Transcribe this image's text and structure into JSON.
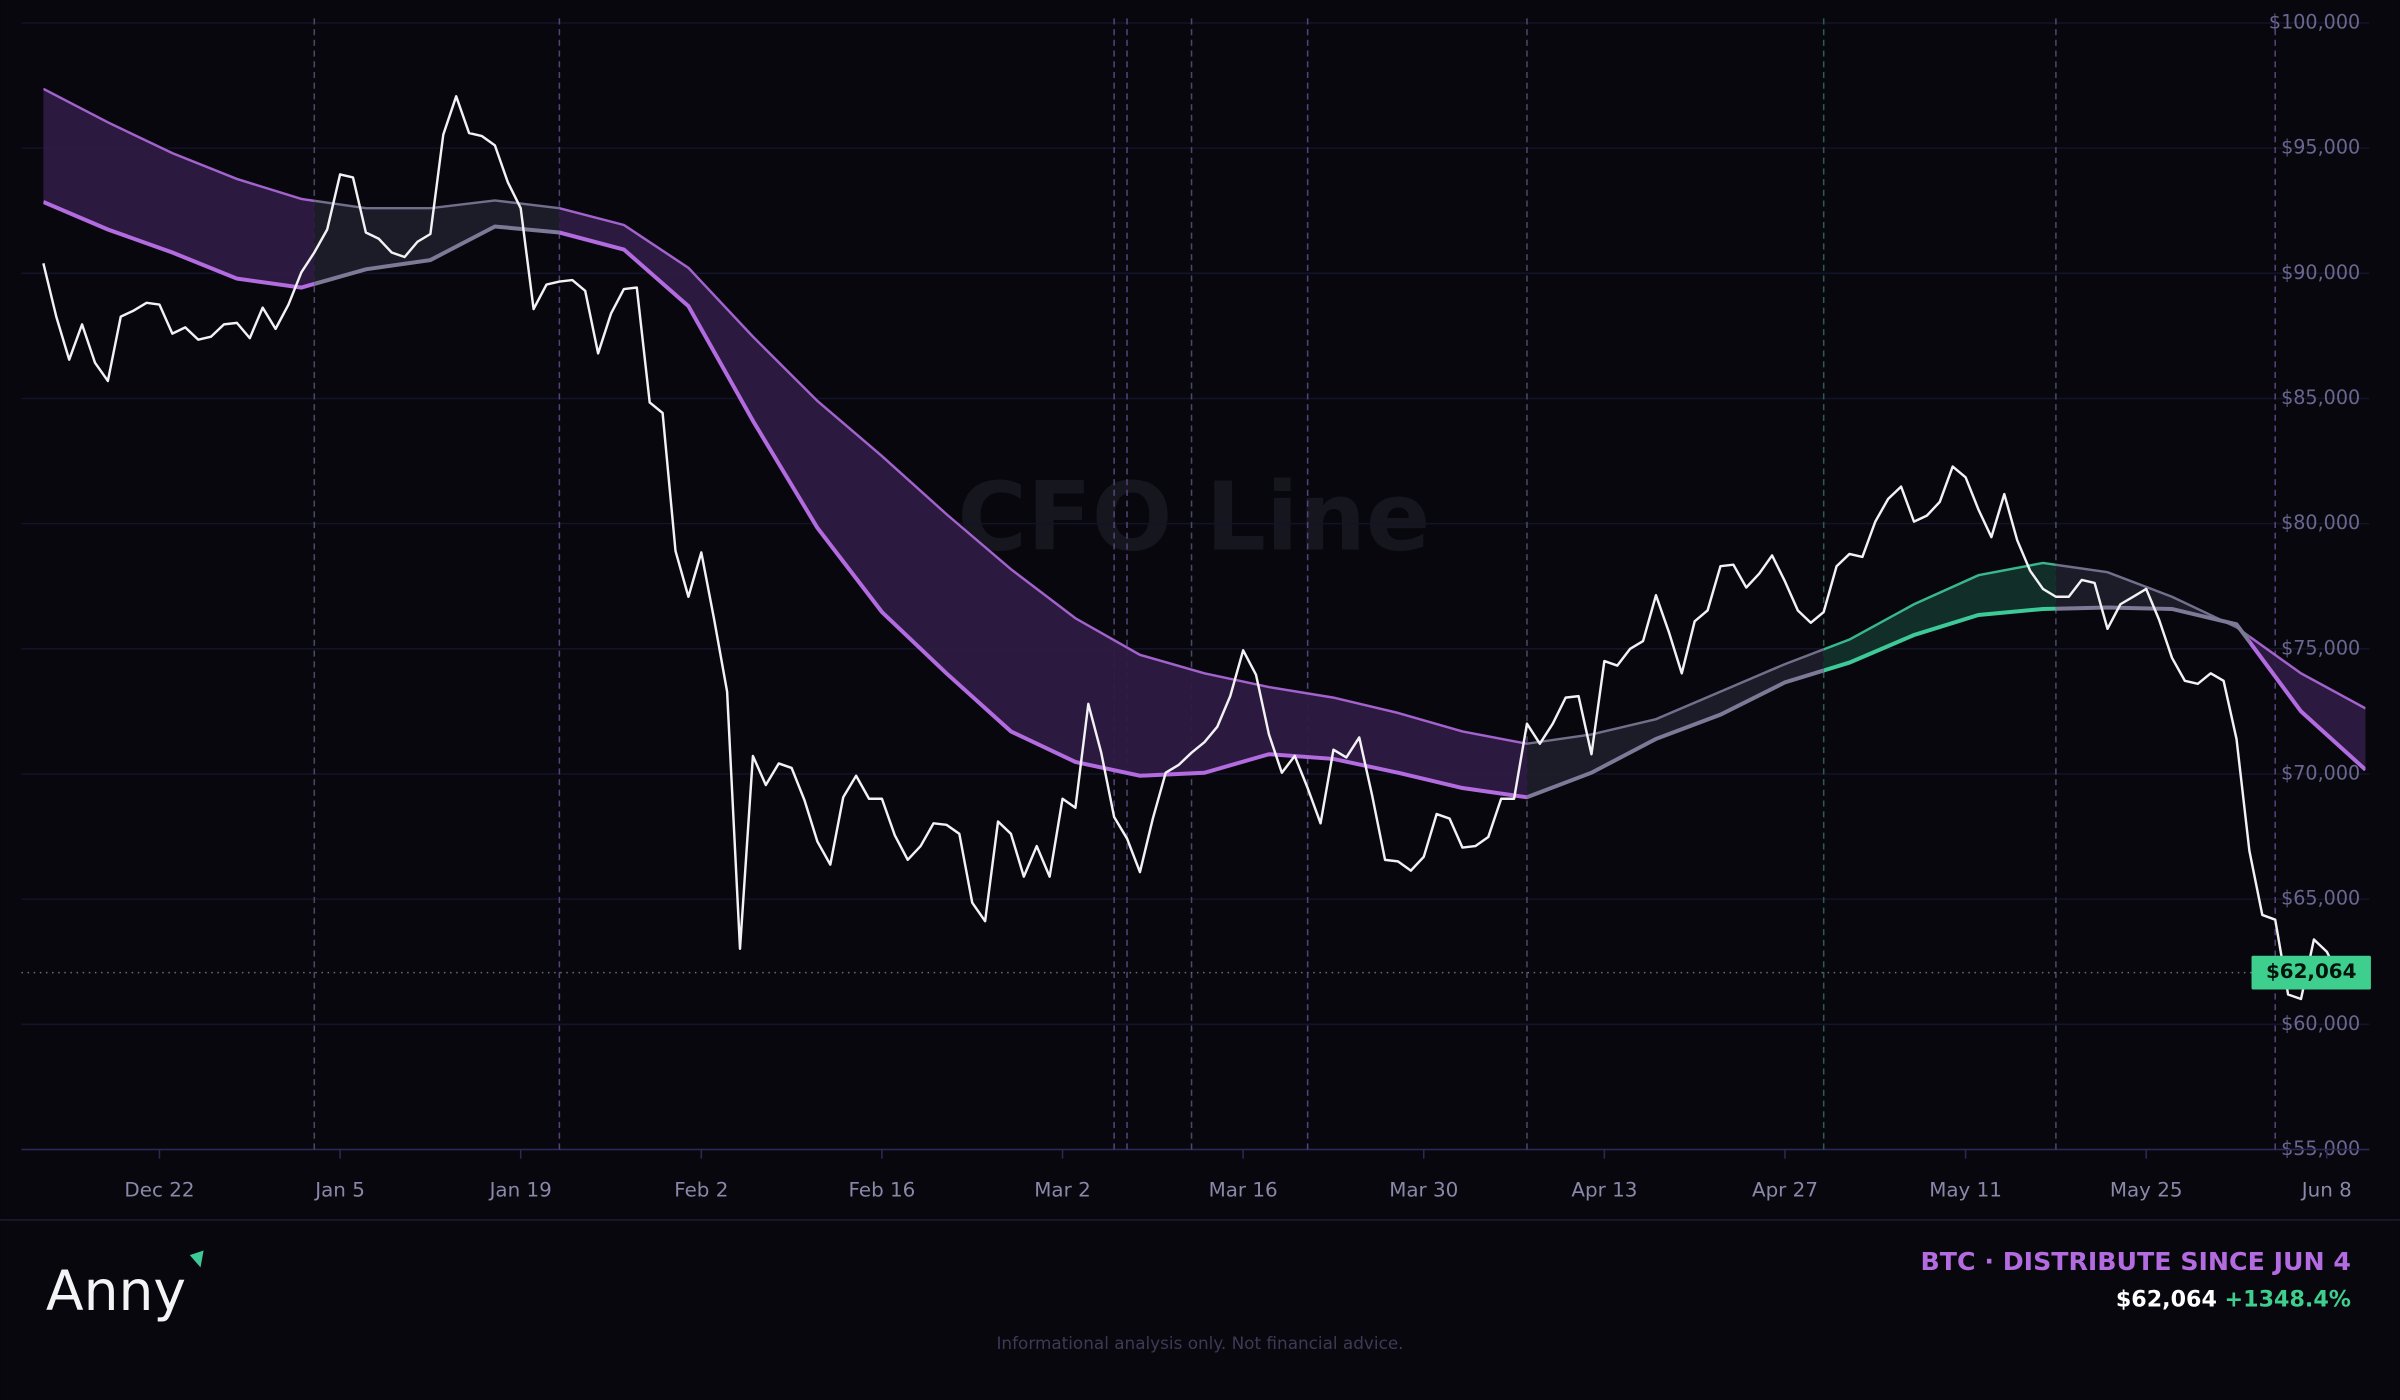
{
  "chart_data": {
    "type": "line",
    "title": "CFO Line",
    "xlim": [
      -1.7,
      180.3
    ],
    "xticks": [
      {
        "value": 9,
        "label": "Dec 22"
      },
      {
        "value": 23,
        "label": "Jan 5"
      },
      {
        "value": 37,
        "label": "Jan 19"
      },
      {
        "value": 51,
        "label": "Feb 2"
      },
      {
        "value": 65,
        "label": "Feb 16"
      },
      {
        "value": 79,
        "label": "Mar 2"
      },
      {
        "value": 93,
        "label": "Mar 16"
      },
      {
        "value": 107,
        "label": "Mar 30"
      },
      {
        "value": 121,
        "label": "Apr 13"
      },
      {
        "value": 135,
        "label": "Apr 27"
      },
      {
        "value": 149,
        "label": "May 11"
      },
      {
        "value": 163,
        "label": "May 25"
      },
      {
        "value": 177,
        "label": "Jun 8"
      }
    ],
    "ylim": [
      55000,
      100000
    ],
    "yticks": [
      {
        "value": 55000,
        "label": "$55,000"
      },
      {
        "value": 60000,
        "label": "$60,000"
      },
      {
        "value": 65000,
        "label": "$65,000"
      },
      {
        "value": 70000,
        "label": "$70,000"
      },
      {
        "value": 75000,
        "label": "$75,000"
      },
      {
        "value": 80000,
        "label": "$80,000"
      },
      {
        "value": 85000,
        "label": "$85,000"
      },
      {
        "value": 90000,
        "label": "$90,000"
      },
      {
        "value": 95000,
        "label": "$95,000"
      },
      {
        "value": 100000,
        "label": "$100,000"
      }
    ],
    "grid": true,
    "series": [
      {
        "color": "#f2f2f5",
        "x": [
          0,
          1,
          2,
          3,
          4,
          5,
          6,
          7,
          8,
          9,
          10,
          11,
          12,
          13,
          14,
          15,
          16,
          17,
          18,
          19,
          20,
          21,
          22,
          23,
          24,
          25,
          26,
          27,
          28,
          29,
          30,
          31,
          32,
          33,
          34,
          35,
          36,
          37,
          38,
          39,
          40,
          41,
          42,
          43,
          44,
          45,
          46,
          47,
          48,
          49,
          50,
          51,
          52,
          53,
          54,
          55,
          56,
          57,
          58,
          59,
          60,
          61,
          62,
          63,
          64,
          65,
          66,
          67,
          68,
          69,
          70,
          71,
          72,
          73,
          74,
          75,
          76,
          77,
          78,
          79,
          80,
          81,
          82,
          83,
          84,
          85,
          86,
          87,
          88,
          89,
          90,
          91,
          92,
          93,
          94,
          95,
          96,
          97,
          98,
          99,
          100,
          101,
          102,
          103,
          104,
          105,
          106,
          107,
          108,
          109,
          110,
          111,
          112,
          113,
          114,
          115,
          116,
          117,
          118,
          119,
          120,
          121,
          122,
          123,
          124,
          125,
          126,
          127,
          128,
          129,
          130,
          131,
          132,
          133,
          134,
          135,
          136,
          137,
          138,
          139,
          140,
          141,
          142,
          143,
          144,
          145,
          146,
          147,
          148,
          149,
          150,
          151,
          152,
          153,
          154,
          155,
          156,
          157,
          158,
          159,
          160,
          161,
          162,
          163,
          164,
          165,
          166,
          167,
          168,
          169,
          170,
          171,
          172,
          173,
          174,
          175,
          176,
          177,
          178,
          179,
          180
        ],
        "values": [
          90400,
          88270,
          86550,
          87960,
          86430,
          85700,
          88270,
          88510,
          88820,
          88750,
          87590,
          87840,
          87350,
          87470,
          87960,
          88020,
          87410,
          88630,
          87780,
          88750,
          90040,
          90830,
          91750,
          93950,
          93830,
          91630,
          91380,
          90830,
          90650,
          91260,
          91570,
          95540,
          97070,
          95600,
          95480,
          95110,
          93640,
          92600,
          88570,
          89550,
          89670,
          89730,
          89300,
          86800,
          88390,
          89370,
          89430,
          84840,
          84420,
          78910,
          77080,
          78850,
          76160,
          73290,
          63020,
          70720,
          69560,
          70420,
          70240,
          68950,
          67300,
          66380,
          69070,
          69930,
          69010,
          69010,
          67550,
          66570,
          67120,
          68030,
          67970,
          67610,
          64860,
          64120,
          68100,
          67610,
          65900,
          67120,
          65900,
          69010,
          68650,
          72800,
          70850,
          68280,
          67420,
          66080,
          68220,
          70050,
          70360,
          70850,
          71270,
          71890,
          73110,
          74940,
          73960,
          71580,
          70050,
          70720,
          69440,
          68030,
          70970,
          70660,
          71460,
          69140,
          66570,
          66510,
          66140,
          66690,
          68400,
          68220,
          67060,
          67120,
          67480,
          69010,
          69010,
          72010,
          71210,
          72010,
          73050,
          73110,
          70790,
          74510,
          74330,
          75000,
          75310,
          77140,
          75670,
          74020,
          76100,
          76530,
          78300,
          78360,
          77450,
          78000,
          78730,
          77690,
          76530,
          76040,
          76470,
          78300,
          78790,
          78670,
          80080,
          80990,
          81480,
          80080,
          80320,
          80870,
          82280,
          81850,
          80560,
          79460,
          81180,
          79340,
          78120,
          77390,
          77080,
          77080,
          77750,
          77630,
          75800,
          76780,
          77080,
          77390,
          76160,
          74640,
          73720,
          73600,
          74020,
          73720,
          71400,
          66930,
          64370,
          64180,
          61190,
          61010,
          63390,
          62900,
          61860,
          62170,
          62064
        ]
      },
      {
        "color": "#9b5ccc",
        "x": [
          0,
          5,
          10,
          15,
          20,
          25,
          30,
          35,
          40,
          45,
          50,
          55,
          60,
          65,
          70,
          75,
          80,
          85,
          90,
          95,
          100,
          105,
          110,
          115,
          120,
          125,
          130,
          135,
          140,
          145,
          150,
          155,
          160,
          165,
          170,
          175,
          180
        ],
        "values": [
          97370,
          96030,
          94800,
          93770,
          92970,
          92600,
          92600,
          92910,
          92600,
          91930,
          90220,
          87470,
          84900,
          82700,
          80380,
          78180,
          76220,
          74760,
          74020,
          73470,
          73050,
          72440,
          71700,
          71210,
          71580,
          72190,
          73290,
          74390,
          75370,
          76780,
          77940,
          78430,
          78060,
          77080,
          75860,
          74020,
          72620
        ]
      },
      {
        "color": "#b36be0",
        "x": [
          0,
          5,
          10,
          15,
          20,
          25,
          30,
          35,
          40,
          45,
          50,
          55,
          60,
          65,
          70,
          75,
          80,
          85,
          90,
          95,
          100,
          105,
          110,
          115,
          120,
          125,
          130,
          135,
          140,
          145,
          150,
          155,
          160,
          165,
          170,
          175,
          180
        ],
        "values": [
          92850,
          91750,
          90830,
          89790,
          89430,
          90160,
          90530,
          91870,
          91630,
          90950,
          88690,
          84110,
          79830,
          76470,
          74020,
          71700,
          70480,
          69930,
          70050,
          70790,
          70600,
          70050,
          69440,
          69070,
          70050,
          71400,
          72370,
          73660,
          74450,
          75550,
          76350,
          76590,
          76650,
          76590,
          75980,
          72500,
          70170
        ]
      }
    ],
    "zones": [
      {
        "from": 0,
        "to": 21,
        "color": "#b36be0",
        "fill": "#2e1a42"
      },
      {
        "from": 21,
        "to": 40,
        "color": "#7d7a98",
        "fill": "#1d1c2a"
      },
      {
        "from": 40,
        "to": 115,
        "color": "#b36be0",
        "fill": "#2e1a42"
      },
      {
        "from": 115,
        "to": 138,
        "color": "#7d7a98",
        "fill": "#1d1c2a"
      },
      {
        "from": 138,
        "to": 156,
        "color": "#3ec998",
        "fill": "#12302a"
      },
      {
        "from": 156,
        "to": 171,
        "color": "#7d7a98",
        "fill": "#1d1c2a"
      },
      {
        "from": 171,
        "to": 180,
        "color": "#b36be0",
        "fill": "#2e1a42"
      }
    ],
    "signals": [
      {
        "x": 21,
        "color": "#4a4864"
      },
      {
        "x": 40,
        "color": "#54427a"
      },
      {
        "x": 83,
        "color": "#54427a"
      },
      {
        "x": 84,
        "color": "#54427a"
      },
      {
        "x": 89,
        "color": "#4a4864"
      },
      {
        "x": 98,
        "color": "#54427a"
      },
      {
        "x": 115,
        "color": "#4a4864"
      },
      {
        "x": 138,
        "color": "#2f5a4c"
      },
      {
        "x": 156,
        "color": "#4a4864"
      },
      {
        "x": 173,
        "color": "#54427a"
      }
    ],
    "last_price": {
      "value": 62064,
      "label": "$62,064"
    },
    "tag_color": "#3ecf8e"
  },
  "footer": {
    "logo": "Anny",
    "signal": "BTC · DISTRIBUTE SINCE JUN 4",
    "change": {
      "value": 1348.4,
      "label": "+1348.4%"
    },
    "disclaimer": "Informational analysis only. Not financial advice."
  }
}
